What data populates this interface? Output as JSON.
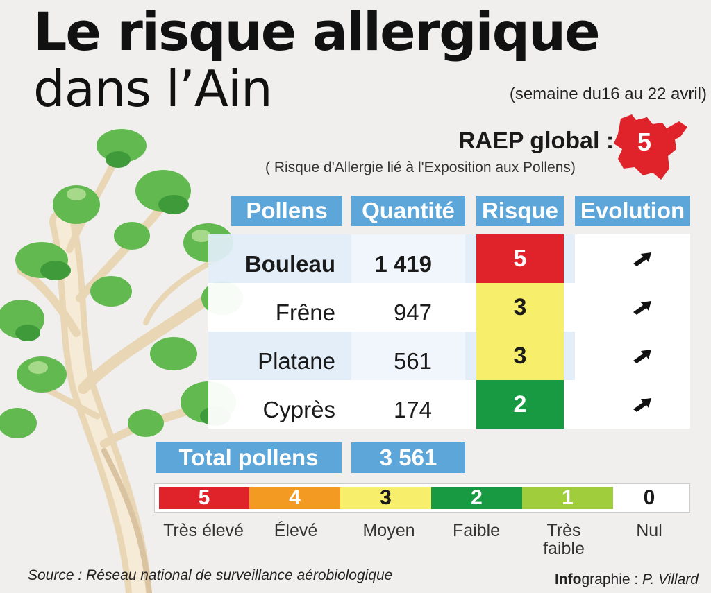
{
  "title": {
    "line1": "Le risque allergique",
    "line2": "dans l’Ain",
    "week": "(semaine du16 au 22 avril)"
  },
  "raep": {
    "label": "RAEP global :",
    "value": "5",
    "subtitle": "( Risque d'Allergie lié à l'Exposition aux Pollens)",
    "map_color": "#e0232a"
  },
  "table": {
    "headers": {
      "pollens": "Pollens",
      "quantite": "Quantité",
      "risque": "Risque",
      "evolution": "Evolution"
    },
    "rows": [
      {
        "pollen": "Bouleau",
        "quantity": "1 419",
        "risk": "5",
        "risk_color": "#e0232a",
        "evolution_icon": "arrow-up-right-icon"
      },
      {
        "pollen": "Frêne",
        "quantity": "947",
        "risk": "3",
        "risk_color": "#f7ef6b",
        "evolution_icon": "arrow-up-right-icon"
      },
      {
        "pollen": "Platane",
        "quantity": "561",
        "risk": "3",
        "risk_color": "#f7ef6b",
        "evolution_icon": "arrow-up-right-icon"
      },
      {
        "pollen": "Cyprès",
        "quantity": "174",
        "risk": "2",
        "risk_color": "#189a43",
        "evolution_icon": "arrow-up-right-icon"
      }
    ],
    "total_label": "Total pollens",
    "total_value": "3 561"
  },
  "scale": [
    {
      "value": "5",
      "label": "Très élevé",
      "color": "#e0232a"
    },
    {
      "value": "4",
      "label": "Élevé",
      "color": "#f39a23"
    },
    {
      "value": "3",
      "label": "Moyen",
      "color": "#f7ef6b"
    },
    {
      "value": "2",
      "label": "Faible",
      "color": "#189a43"
    },
    {
      "value": "1",
      "label": "Très faible",
      "color": "#9fcd3b"
    },
    {
      "value": "0",
      "label": "Nul",
      "color": "#ffffff"
    }
  ],
  "footer": {
    "source": "Source : Réseau national de surveillance aérobiologique",
    "credit_bold": "Info",
    "credit_rest": "graphie : ",
    "credit_author": "P. Villard"
  }
}
